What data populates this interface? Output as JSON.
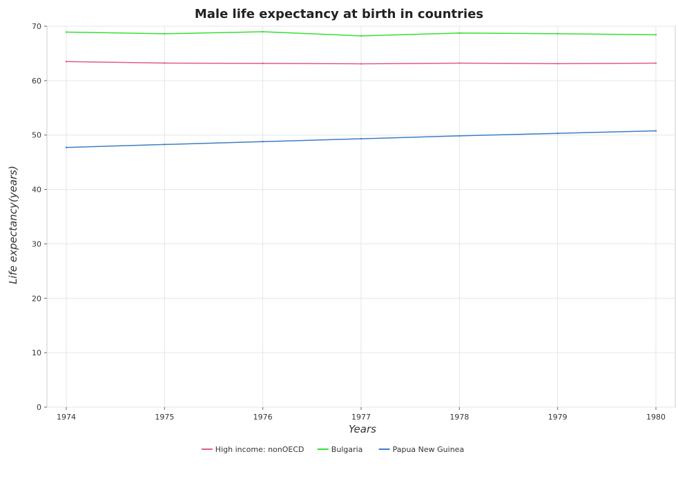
{
  "chart_data": {
    "type": "line",
    "title": "Male life expectancy at birth in countries",
    "xlabel": "Years",
    "ylabel": "Life expectancy(years)",
    "categories": [
      "1974",
      "1975",
      "1976",
      "1977",
      "1978",
      "1979",
      "1980"
    ],
    "ylim": [
      0,
      70
    ],
    "yticks": [
      0,
      10,
      20,
      30,
      40,
      50,
      60,
      70
    ],
    "grid": true,
    "legend_position": "bottom",
    "series": [
      {
        "name": "High income: nonOECD",
        "color": "#e05a8a",
        "values": [
          63.5,
          63.23,
          63.17,
          63.09,
          63.21,
          63.12,
          63.21
        ]
      },
      {
        "name": "Bulgaria",
        "color": "#33e033",
        "values": [
          68.92,
          68.62,
          68.98,
          68.23,
          68.75,
          68.62,
          68.43
        ]
      },
      {
        "name": "Papua New Guinea",
        "color": "#3b7dc4",
        "values": [
          47.72,
          48.26,
          48.79,
          49.32,
          49.85,
          50.32,
          50.77
        ]
      }
    ]
  }
}
